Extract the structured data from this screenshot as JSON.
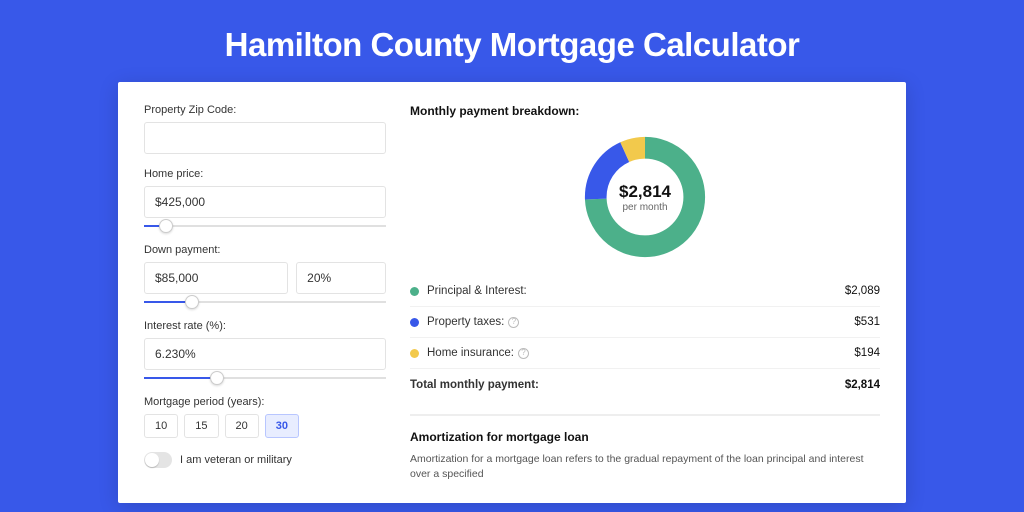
{
  "title": "Hamilton County Mortgage Calculator",
  "colors": {
    "accent": "#3858e9",
    "principal": "#4cb08a",
    "taxes": "#3858e9",
    "insurance": "#f2c94c"
  },
  "form": {
    "zip_label": "Property Zip Code:",
    "zip_value": "",
    "price_label": "Home price:",
    "price_value": "$425,000",
    "price_slider_pct": 9,
    "down_label": "Down payment:",
    "down_value": "$85,000",
    "down_pct_value": "20%",
    "down_slider_pct": 20,
    "rate_label": "Interest rate (%):",
    "rate_value": "6.230%",
    "rate_slider_pct": 30,
    "period_label": "Mortgage period (years):",
    "periods": [
      "10",
      "15",
      "20",
      "30"
    ],
    "period_selected_index": 3,
    "veteran_label": "I am veteran or military",
    "veteran_on": false
  },
  "breakdown": {
    "heading": "Monthly payment breakdown:",
    "monthly_value": "$2,814",
    "monthly_sub": "per month",
    "donut": {
      "slices": [
        {
          "label": "Principal & Interest:",
          "amount": "$2,089",
          "color": "#4cb08a",
          "fraction": 0.742
        },
        {
          "label": "Property taxes:",
          "amount": "$531",
          "color": "#3858e9",
          "fraction": 0.189,
          "info": true
        },
        {
          "label": "Home insurance:",
          "amount": "$194",
          "color": "#f2c94c",
          "fraction": 0.069,
          "info": true
        }
      ]
    },
    "total_label": "Total monthly payment:",
    "total_amount": "$2,814"
  },
  "amortization": {
    "title": "Amortization for mortgage loan",
    "text": "Amortization for a mortgage loan refers to the gradual repayment of the loan principal and interest over a specified"
  }
}
